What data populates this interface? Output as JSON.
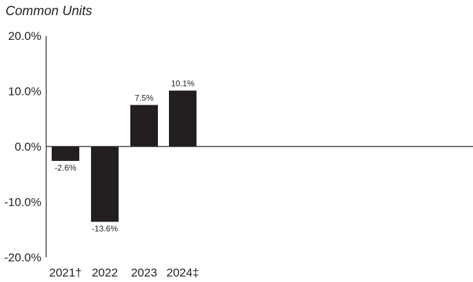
{
  "chart_data": {
    "type": "bar",
    "title": "Common Units",
    "categories": [
      "2021†",
      "2022",
      "2023",
      "2024‡"
    ],
    "values": [
      -2.6,
      -13.6,
      7.5,
      10.1
    ],
    "data_labels": [
      "-2.6%",
      "-13.6%",
      "7.5%",
      "10.1%"
    ],
    "ylim": [
      -20,
      20
    ],
    "yticks": [
      20,
      10,
      0,
      -10,
      -20
    ],
    "ytick_labels": [
      "20.0%",
      "10.0%",
      "0.0%",
      "-10.0%",
      "-20.0%"
    ],
    "xlabel": "",
    "ylabel": "",
    "grid": false,
    "bar_color": "#231f20"
  }
}
